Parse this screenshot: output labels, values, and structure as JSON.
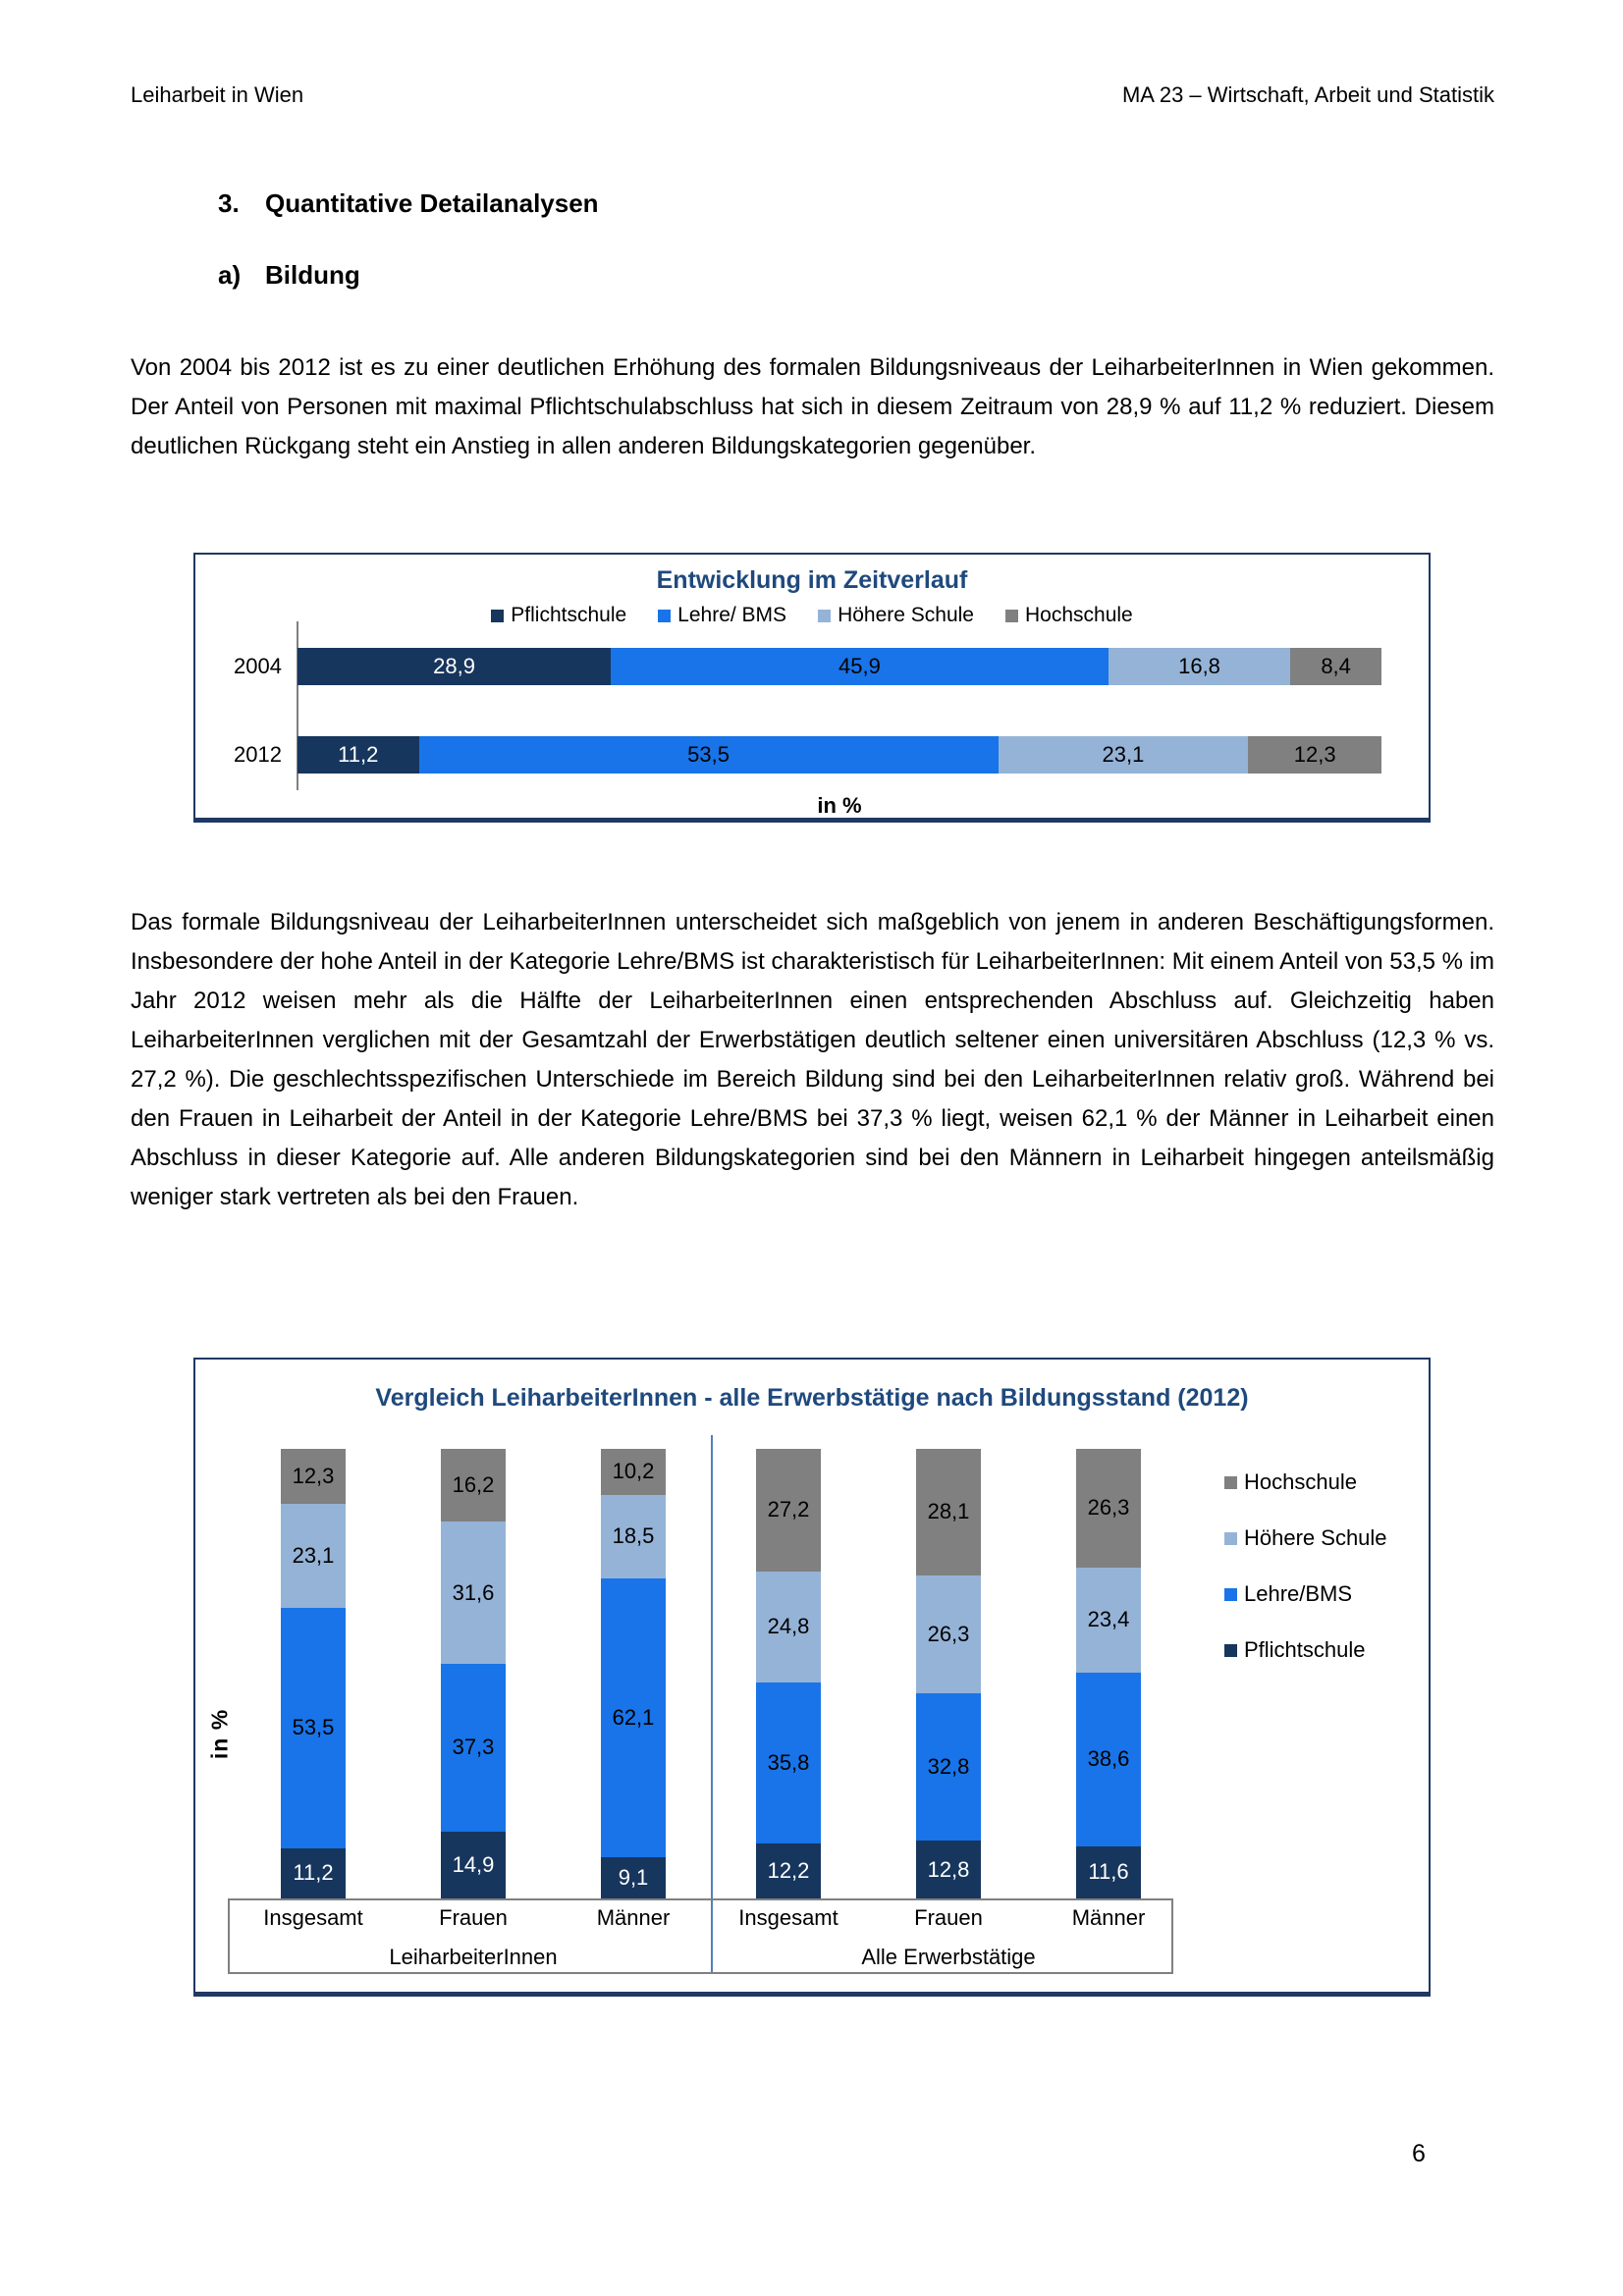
{
  "header": {
    "left": "Leiharbeit in Wien",
    "right": "MA 23 – Wirtschaft, Arbeit und Statistik"
  },
  "headings": {
    "section_number": "3.",
    "section_title": "Quantitative Detailanalysen",
    "subsection_letter": "a)",
    "subsection_title": "Bildung"
  },
  "paragraphs": {
    "p1": "Von 2004 bis 2012 ist es zu einer deutlichen Erhöhung des formalen Bildungsniveaus der LeiharbeiterInnen in Wien gekommen. Der Anteil von Personen mit maximal Pflichtschulabschluss hat sich in diesem Zeitraum von 28,9 % auf 11,2 % reduziert. Diesem deutlichen Rückgang steht ein Anstieg in allen anderen Bildungskategorien gegenüber.",
    "p2": "Das formale Bildungsniveau der LeiharbeiterInnen unterscheidet sich maßgeblich von jenem in anderen Beschäftigungsformen. Insbesondere der hohe Anteil in der Kategorie Lehre/BMS ist charakteristisch für LeiharbeiterInnen: Mit einem Anteil von 53,5 % im Jahr 2012 weisen mehr als die Hälfte der LeiharbeiterInnen einen entsprechenden Abschluss auf. Gleichzeitig haben LeiharbeiterInnen verglichen mit der Gesamtzahl der Erwerbstätigen deutlich seltener einen universitären Abschluss (12,3 % vs. 27,2 %). Die geschlechtsspezifischen Unterschiede im Bereich Bildung sind bei den LeiharbeiterInnen relativ groß. Während bei den Frauen in Leiharbeit der Anteil in der Kategorie Lehre/BMS bei 37,3 % liegt, weisen 62,1 % der Männer in Leiharbeit einen Abschluss in dieser Kategorie auf. Alle anderen Bildungskategorien sind bei den Männern in Leiharbeit hingegen anteilsmäßig weniger stark vertreten als bei den Frauen."
  },
  "footer": {
    "page_number": "6"
  },
  "colors": {
    "chart_border": "#1F3864",
    "chart_title": "#1F497D",
    "axis_line": "#808080",
    "group_separator": "#4F81BD",
    "label_box_border": "#808080",
    "pflichtschule": "#17365D",
    "lehre_bms": "#1874E8",
    "hoehere_schule": "#95B3D7",
    "hochschule": "#808080"
  },
  "chart_data": [
    {
      "type": "bar",
      "orientation": "horizontal",
      "stacked": true,
      "title": "Entwicklung im Zeitverlauf",
      "xlabel": "in %",
      "xlim": [
        0,
        100
      ],
      "legend_position": "top",
      "legend": [
        {
          "label": "Pflichtschule",
          "color": "#17365D"
        },
        {
          "label": "Lehre/ BMS",
          "color": "#1874E8"
        },
        {
          "label": "Höhere Schule",
          "color": "#95B3D7"
        },
        {
          "label": "Hochschule",
          "color": "#808080"
        }
      ],
      "categories": [
        "2004",
        "2012"
      ],
      "series": [
        {
          "name": "Pflichtschule",
          "color": "#17365D",
          "label_color": "#FFFFFF",
          "values": [
            28.9,
            11.2
          ]
        },
        {
          "name": "Lehre/ BMS",
          "color": "#1874E8",
          "label_color": "#000000",
          "values": [
            45.9,
            53.5
          ]
        },
        {
          "name": "Höhere Schule",
          "color": "#95B3D7",
          "label_color": "#000000",
          "values": [
            16.8,
            23.1
          ]
        },
        {
          "name": "Hochschule",
          "color": "#808080",
          "label_color": "#000000",
          "values": [
            8.4,
            12.3
          ]
        }
      ]
    },
    {
      "type": "bar",
      "orientation": "vertical",
      "stacked": true,
      "title": "Vergleich LeiharbeiterInnen - alle Erwerbstätige nach Bildungsstand (2012)",
      "ylabel": "in %",
      "ylim": [
        0,
        100
      ],
      "legend_position": "right",
      "legend": [
        {
          "label": "Hochschule",
          "color": "#808080"
        },
        {
          "label": "Höhere Schule",
          "color": "#95B3D7"
        },
        {
          "label": "Lehre/BMS",
          "color": "#1874E8"
        },
        {
          "label": "Pflichtschule",
          "color": "#17365D"
        }
      ],
      "groups": [
        {
          "label": "LeiharbeiterInnen",
          "categories": [
            "Insgesamt",
            "Frauen",
            "Männer"
          ]
        },
        {
          "label": "Alle Erwerbstätige",
          "categories": [
            "Insgesamt",
            "Frauen",
            "Männer"
          ]
        }
      ],
      "series": [
        {
          "name": "Pflichtschule",
          "color": "#17365D",
          "label_color": "#FFFFFF",
          "values": [
            11.2,
            14.9,
            9.1,
            12.2,
            12.8,
            11.6
          ]
        },
        {
          "name": "Lehre/BMS",
          "color": "#1874E8",
          "label_color": "#000000",
          "values": [
            53.5,
            37.3,
            62.1,
            35.8,
            32.8,
            38.6
          ]
        },
        {
          "name": "Höhere Schule",
          "color": "#95B3D7",
          "label_color": "#000000",
          "values": [
            23.1,
            31.6,
            18.5,
            24.8,
            26.3,
            23.4
          ]
        },
        {
          "name": "Hochschule",
          "color": "#808080",
          "label_color": "#000000",
          "values": [
            12.3,
            16.2,
            10.2,
            27.2,
            28.1,
            26.3
          ]
        }
      ]
    }
  ]
}
